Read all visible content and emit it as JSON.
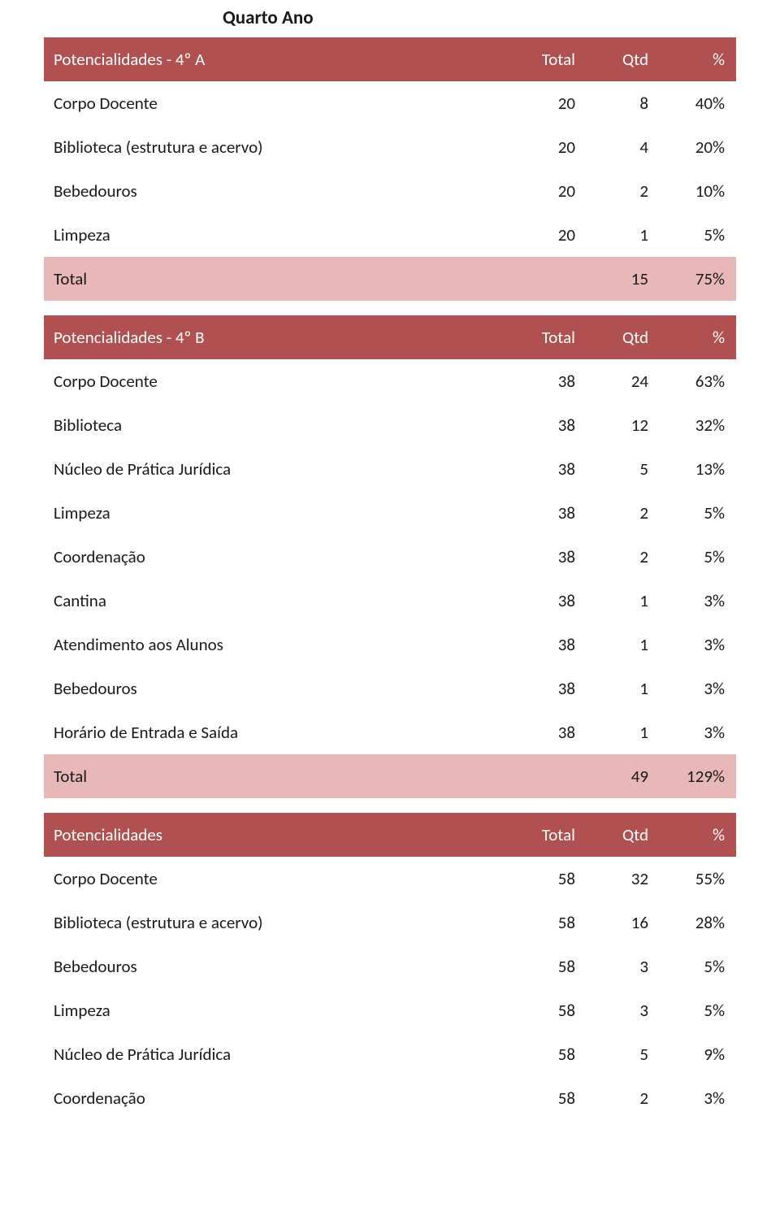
{
  "title": "Quarto Ano",
  "colors": {
    "header_bg": "#b05050",
    "header_fg": "#ffffff",
    "total_bg": "#e8b8b8",
    "body_bg": "#ffffff",
    "text": "#1a1a1a"
  },
  "header_labels": {
    "total": "Total",
    "qtd": "Qtd",
    "pct": "%"
  },
  "tables": [
    {
      "header_title": "Potencialidades - 4º A",
      "rows": [
        {
          "label": "Corpo Docente",
          "total": "20",
          "qtd": "8",
          "pct": "40%"
        },
        {
          "label": "Biblioteca (estrutura e acervo)",
          "total": "20",
          "qtd": "4",
          "pct": "20%"
        },
        {
          "label": "Bebedouros",
          "total": "20",
          "qtd": "2",
          "pct": "10%"
        },
        {
          "label": "Limpeza",
          "total": "20",
          "qtd": "1",
          "pct": "5%"
        }
      ],
      "summary": {
        "label": "Total",
        "qtd": "15",
        "pct": "75%"
      }
    },
    {
      "header_title": "Potencialidades - 4º B",
      "rows": [
        {
          "label": "Corpo Docente",
          "total": "38",
          "qtd": "24",
          "pct": "63%"
        },
        {
          "label": "Biblioteca",
          "total": "38",
          "qtd": "12",
          "pct": "32%"
        },
        {
          "label": "Núcleo de Prática Jurídica",
          "total": "38",
          "qtd": "5",
          "pct": "13%"
        },
        {
          "label": "Limpeza",
          "total": "38",
          "qtd": "2",
          "pct": "5%"
        },
        {
          "label": "Coordenação",
          "total": "38",
          "qtd": "2",
          "pct": "5%"
        },
        {
          "label": "Cantina",
          "total": "38",
          "qtd": "1",
          "pct": "3%"
        },
        {
          "label": "Atendimento aos Alunos",
          "total": "38",
          "qtd": "1",
          "pct": "3%"
        },
        {
          "label": "Bebedouros",
          "total": "38",
          "qtd": "1",
          "pct": "3%"
        },
        {
          "label": "Horário de Entrada e Saída",
          "total": "38",
          "qtd": "1",
          "pct": "3%"
        }
      ],
      "summary": {
        "label": "Total",
        "qtd": "49",
        "pct": "129%"
      }
    },
    {
      "header_title": "Potencialidades",
      "rows": [
        {
          "label": "Corpo Docente",
          "total": "58",
          "qtd": "32",
          "pct": "55%"
        },
        {
          "label": "Biblioteca (estrutura e acervo)",
          "total": "58",
          "qtd": "16",
          "pct": "28%"
        },
        {
          "label": "Bebedouros",
          "total": "58",
          "qtd": "3",
          "pct": "5%"
        },
        {
          "label": "Limpeza",
          "total": "58",
          "qtd": "3",
          "pct": "5%"
        },
        {
          "label": "Núcleo de Prática Jurídica",
          "total": "58",
          "qtd": "5",
          "pct": "9%"
        },
        {
          "label": "Coordenação",
          "total": "58",
          "qtd": "2",
          "pct": "3%"
        }
      ],
      "summary": null
    }
  ]
}
